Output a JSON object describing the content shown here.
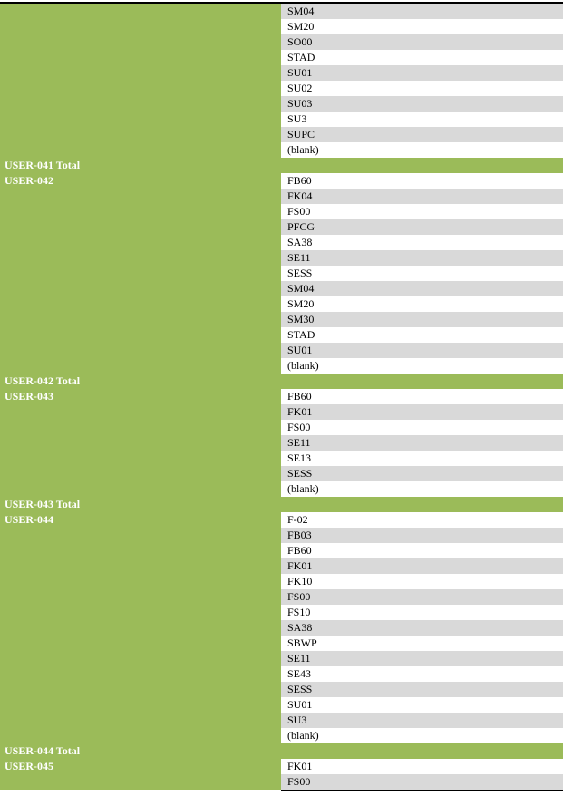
{
  "groups": [
    {
      "codes": [
        "SM04",
        "SM20",
        "SO00",
        "STAD",
        "SU01",
        "SU02",
        "SU03",
        "SU3",
        "SUPC",
        "(blank)"
      ],
      "total": "USER-041 Total"
    },
    {
      "user": "USER-042",
      "codes": [
        "FB60",
        "FK04",
        "FS00",
        "PFCG",
        "SA38",
        "SE11",
        "SESS",
        "SM04",
        "SM20",
        "SM30",
        "STAD",
        "SU01",
        "(blank)"
      ],
      "total": "USER-042 Total"
    },
    {
      "user": "USER-043",
      "codes": [
        "FB60",
        "FK01",
        "FS00",
        "SE11",
        "SE13",
        "SESS",
        "(blank)"
      ],
      "total": "USER-043 Total"
    },
    {
      "user": "USER-044",
      "codes": [
        "F-02",
        "FB03",
        "FB60",
        "FK01",
        "FK10",
        "FS00",
        "FS10",
        "SA38",
        "SBWP",
        "SE11",
        "SE43",
        "SESS",
        "SU01",
        "SU3",
        "(blank)"
      ],
      "total": "USER-044 Total"
    },
    {
      "user": "USER-045",
      "codes": [
        "FK01",
        "FS00"
      ]
    }
  ]
}
